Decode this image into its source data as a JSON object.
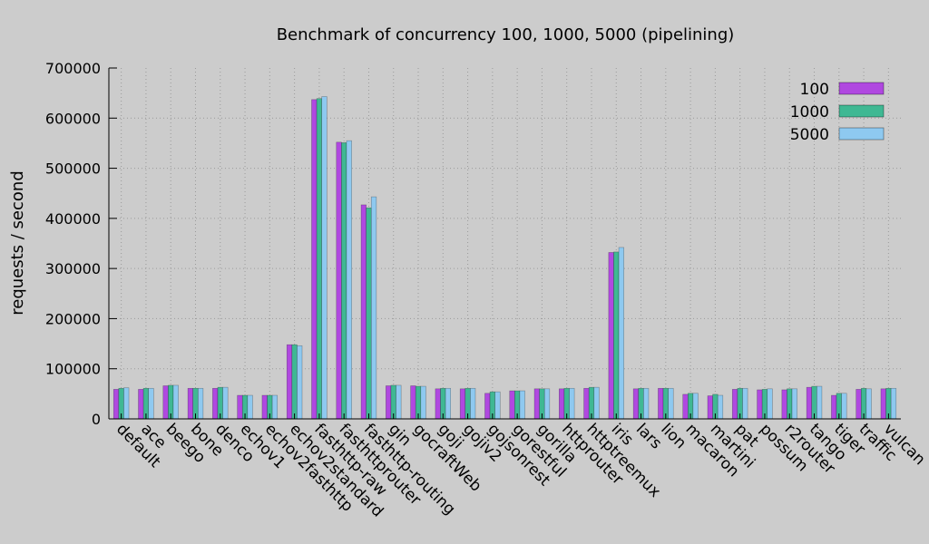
{
  "chart_data": {
    "type": "bar",
    "title": "Benchmark of concurrency 100, 1000, 5000 (pipelining)",
    "xlabel": "",
    "ylabel": "requests / second",
    "ylim": [
      0,
      700000
    ],
    "yticks": [
      0,
      100000,
      200000,
      300000,
      400000,
      500000,
      600000,
      700000
    ],
    "ytick_labels": [
      "0",
      "100000",
      "200000",
      "300000",
      "400000",
      "500000",
      "600000",
      "700000"
    ],
    "grid": true,
    "legend_position": "top-right",
    "categories": [
      "default",
      "ace",
      "beego",
      "bone",
      "denco",
      "echov1",
      "echov2fasthttp",
      "echov2standard",
      "fasthttp-raw",
      "fasthttprouter",
      "fasthttp-routing",
      "gin",
      "gocraftWeb",
      "goji",
      "gojiv2",
      "gojsonrest",
      "gorestful",
      "gorilla",
      "httprouter",
      "httptreemux",
      "iris",
      "lars",
      "lion",
      "macaron",
      "martini",
      "pat",
      "possum",
      "r2router",
      "tango",
      "tiger",
      "traffic",
      "vulcan"
    ],
    "series": [
      {
        "name": "100",
        "color": "#b048e0",
        "values": [
          59000,
          59000,
          66000,
          61000,
          61000,
          47000,
          47000,
          148000,
          637000,
          552000,
          427000,
          66000,
          66000,
          60000,
          60000,
          51000,
          56000,
          60000,
          60000,
          61000,
          332000,
          60000,
          61000,
          49000,
          46000,
          59000,
          58000,
          58000,
          63000,
          47000,
          59000,
          60000
        ]
      },
      {
        "name": "1000",
        "color": "#3fb893",
        "values": [
          61000,
          61000,
          67000,
          61000,
          63000,
          47000,
          47000,
          148000,
          639000,
          551000,
          421000,
          67000,
          65000,
          61000,
          61000,
          54000,
          56000,
          60000,
          61000,
          63000,
          333000,
          61000,
          61000,
          51000,
          49000,
          61000,
          59000,
          60000,
          65000,
          51000,
          61000,
          61000
        ]
      },
      {
        "name": "5000",
        "color": "#8ec9f0",
        "values": [
          62000,
          61000,
          67000,
          61000,
          63000,
          47000,
          47000,
          146000,
          643000,
          555000,
          443000,
          67000,
          65000,
          61000,
          61000,
          54000,
          56000,
          60000,
          61000,
          63000,
          342000,
          61000,
          61000,
          51000,
          47000,
          61000,
          60000,
          60000,
          65000,
          51000,
          60000,
          61000
        ]
      }
    ]
  }
}
